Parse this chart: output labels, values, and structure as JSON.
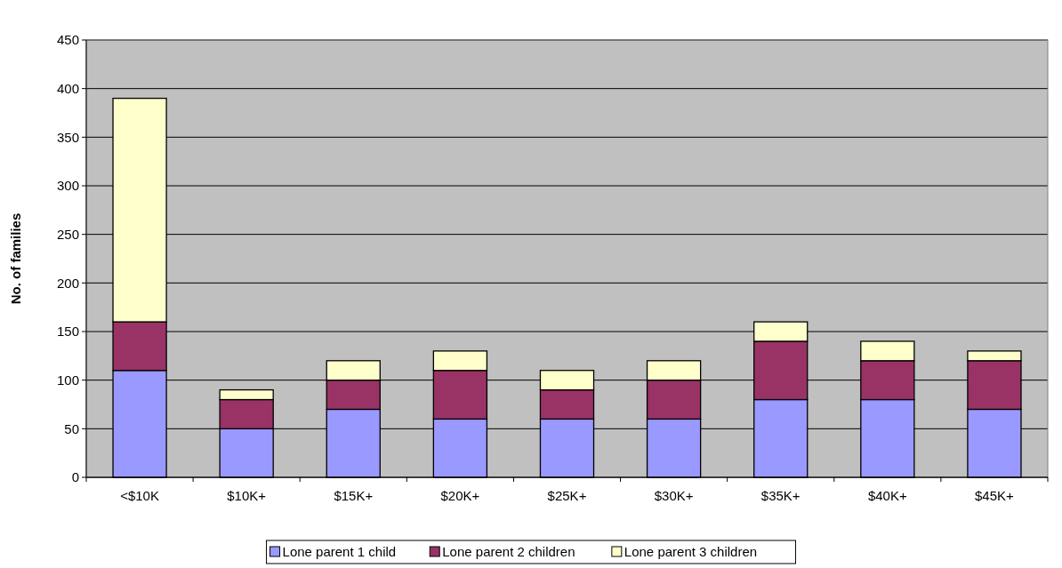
{
  "chart_data": {
    "type": "bar",
    "stacked": true,
    "ylabel": "No. of families",
    "categories": [
      "<$10K",
      "$10K+",
      "$15K+",
      "$20K+",
      "$25K+",
      "$30K+",
      "$35K+",
      "$40K+",
      "$45K+"
    ],
    "series": [
      {
        "name": "Lone parent 1 child",
        "color": "#9999ff",
        "values": [
          110,
          50,
          70,
          60,
          60,
          60,
          80,
          80,
          70
        ]
      },
      {
        "name": "Lone parent 2 children",
        "color": "#993366",
        "values": [
          50,
          30,
          30,
          50,
          30,
          40,
          60,
          40,
          50
        ]
      },
      {
        "name": "Lone parent 3 children",
        "color": "#ffffcc",
        "values": [
          230,
          10,
          20,
          20,
          20,
          20,
          20,
          20,
          10
        ]
      }
    ],
    "ylim": [
      0,
      450
    ],
    "yticks": [
      0,
      50,
      100,
      150,
      200,
      250,
      300,
      350,
      400,
      450
    ],
    "grid": "y",
    "legend": "bottom"
  }
}
